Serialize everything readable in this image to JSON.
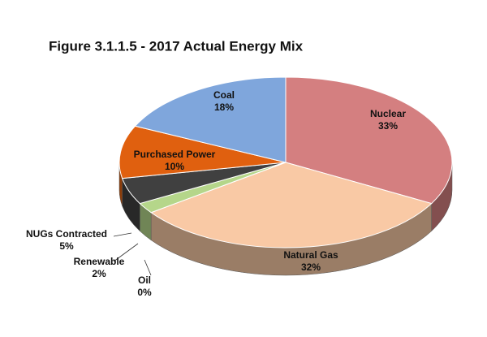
{
  "chart_data": {
    "type": "pie",
    "title": "Figure 3.1.1.5 - 2017 Actual Energy Mix",
    "categories": [
      "Nuclear",
      "Natural Gas",
      "Oil",
      "Renewable",
      "NUGs Contracted",
      "Purchased Power",
      "Coal"
    ],
    "values": [
      33,
      32,
      0,
      2,
      5,
      10,
      18
    ],
    "value_labels": [
      "33%",
      "32%",
      "0%",
      "2%",
      "5%",
      "10%",
      "18%"
    ],
    "colors": [
      "#d47f80",
      "#f9c9a5",
      "#a9a9cf",
      "#b5d68a",
      "#404040",
      "#e0600f",
      "#7fa6dc"
    ]
  }
}
